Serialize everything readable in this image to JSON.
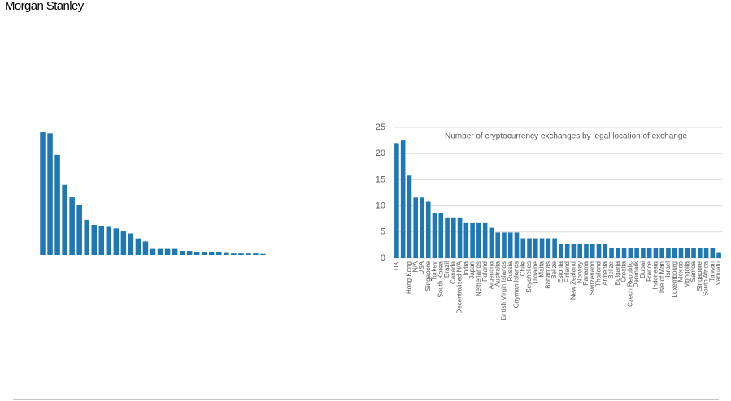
{
  "header": {
    "logo": "Morgan Stanley"
  },
  "chart_data": [
    {
      "type": "bar",
      "color": "#1f77b4",
      "values": [
        24.5,
        24.3,
        20,
        14,
        11.5,
        10,
        7,
        6,
        5.8,
        5.6,
        5.3,
        4.7,
        4.3,
        3.3,
        2.7,
        1.2,
        1.2,
        1.2,
        1.2,
        0.8,
        0.8,
        0.6,
        0.6,
        0.5,
        0.5,
        0.4,
        0.3,
        0.3,
        0.3,
        0.3,
        0.2
      ],
      "ylim": [
        0,
        25
      ]
    },
    {
      "type": "bar",
      "color": "#1f77b4",
      "title": "Number of cryptocurrency exchanges by legal location of exchange",
      "categories": [
        "UK",
        null,
        "Hong Kong",
        "N/A",
        "USA",
        "Singapore",
        "Turkey",
        "South Korea",
        "Brazil",
        "Canada",
        "Decentralised N/A",
        "India",
        "Japan",
        "Netherlands",
        "Poland",
        "Argentina",
        "Australia",
        "British Virgin Islands",
        "Russia",
        "Cayman Islands",
        "Chile",
        "Seychelles",
        "Ukraine",
        "Malta",
        "Bahamas",
        "Belize",
        "Estonia",
        "Finland",
        "New Zealand",
        "Norway",
        "Panama",
        "Switzerland",
        "Thailand",
        "Armenia",
        "Belize",
        "Bulgaria",
        "Croatia",
        "Czech Republic",
        "Denmark",
        "Dubai",
        "France",
        "Indonesia",
        "Isle of Man",
        "Israel",
        "Luxembourg",
        "Mexico",
        "Mongolia",
        "Samoa",
        "Singapore",
        "South Africa",
        "Taiwan",
        "Vanuatu"
      ],
      "values": [
        22,
        22.5,
        15.8,
        11.6,
        11.6,
        10.8,
        8.6,
        8.6,
        7.8,
        7.8,
        7.8,
        6.7,
        6.7,
        6.7,
        6.7,
        5.8,
        4.9,
        4.9,
        4.9,
        4.9,
        3.8,
        3.8,
        3.8,
        3.8,
        3.8,
        3.8,
        2.8,
        2.8,
        2.8,
        2.8,
        2.8,
        2.8,
        2.8,
        2.8,
        1.9,
        1.9,
        1.9,
        1.9,
        1.9,
        1.9,
        1.9,
        1.9,
        1.9,
        1.9,
        1.9,
        1.9,
        1.9,
        1.9,
        1.9,
        1.9,
        1.9,
        1
      ],
      "ylim": [
        0,
        25
      ],
      "yticks": [
        0,
        5,
        10,
        15,
        20,
        25
      ],
      "grid": true
    }
  ]
}
